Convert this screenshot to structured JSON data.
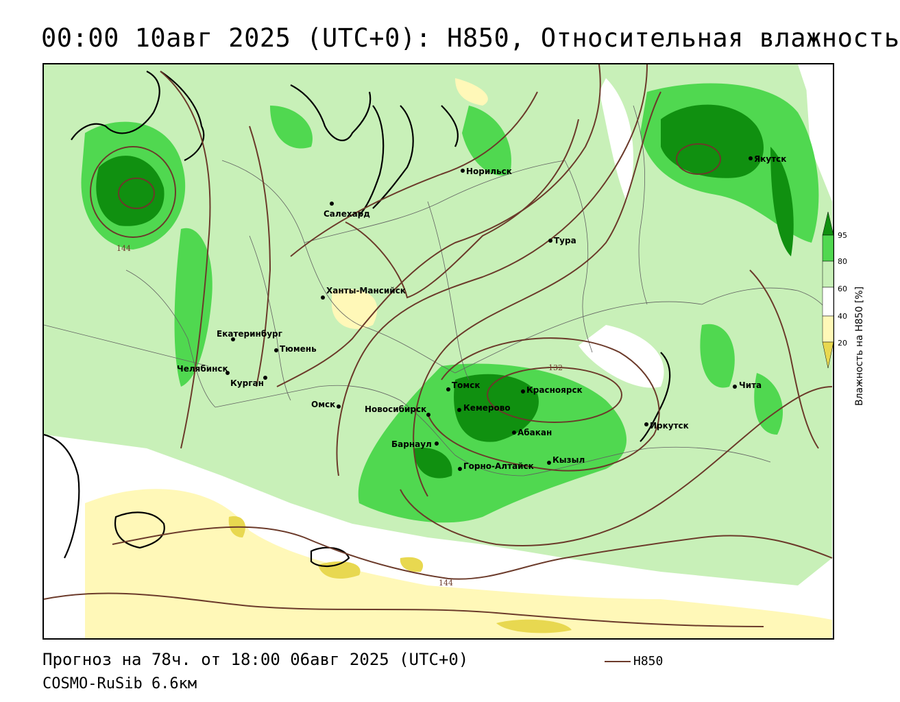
{
  "title": "00:00 10авг 2025 (UTC+0): H850, Относительная влажность",
  "footer": {
    "forecast": "Прогноз на 78ч. от 18:00 06авг 2025 (UTC+0)",
    "model": "COSMO-RuSib 6.6км"
  },
  "line_legend": {
    "label": "H850",
    "color": "#6b3a2a"
  },
  "colorbar": {
    "title": "Влажность на H850 [%]",
    "ticks": [
      "95",
      "80",
      "60",
      "40",
      "20"
    ],
    "colors": {
      "very_dry": "#e8d850",
      "dry": "#fff8b8",
      "normal": "#ffffff",
      "moist": "#c8f0b8",
      "wet": "#50d850",
      "very_wet": "#109010"
    }
  },
  "contour_labels": [
    "144",
    "132",
    "144"
  ],
  "cities": [
    "Норильск",
    "Якутск",
    "Салехард",
    "Тура",
    "Ханты-Мансийск",
    "Екатеринбург",
    "Тюмень",
    "Челябинск",
    "Курган",
    "Омск",
    "Новосибирск",
    "Томск",
    "Красноярск",
    "Кемерово",
    "Барнаул",
    "Абакан",
    "Иркутск",
    "Чита",
    "Кызыл",
    "Горно-Алтайск"
  ]
}
